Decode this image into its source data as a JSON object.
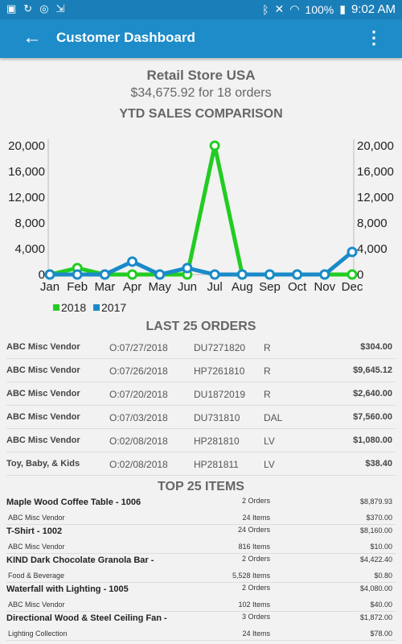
{
  "status": {
    "battery": "100%",
    "time": "9:02 AM"
  },
  "appbar": {
    "title": "Customer Dashboard"
  },
  "header": {
    "store": "Retail Store USA",
    "total": "$34,675.92 for 18 orders",
    "section": "YTD SALES COMPARISON"
  },
  "colors": {
    "series2018": "#22cc22",
    "series2017": "#1a8ac9",
    "appbar": "#1e8cc8"
  },
  "chart_data": {
    "type": "line",
    "categories": [
      "Jan",
      "Feb",
      "Mar",
      "Apr",
      "May",
      "Jun",
      "Jul",
      "Aug",
      "Sep",
      "Oct",
      "Nov",
      "Dec"
    ],
    "series": [
      {
        "name": "2018",
        "values": [
          0,
          1000,
          0,
          0,
          0,
          0,
          20000,
          0,
          0,
          0,
          0,
          0
        ]
      },
      {
        "name": "2017",
        "values": [
          0,
          0,
          0,
          2000,
          0,
          1000,
          0,
          0,
          0,
          0,
          0,
          3500
        ]
      }
    ],
    "yticks": [
      "20,000",
      "16,000",
      "12,000",
      "8,000",
      "4,000",
      "0"
    ],
    "ylim": [
      0,
      20000
    ],
    "legend": "bottom-left"
  },
  "orders": {
    "title": "LAST 25 ORDERS",
    "rows": [
      {
        "vendor": "ABC Misc Vendor",
        "date": "O:07/27/2018",
        "num": "DU7271820",
        "type": "R",
        "amount": "$304.00"
      },
      {
        "vendor": "ABC Misc Vendor",
        "date": "O:07/26/2018",
        "num": "HP7261810",
        "type": "R",
        "amount": "$9,645.12"
      },
      {
        "vendor": "ABC Misc Vendor",
        "date": "O:07/20/2018",
        "num": "DU1872019",
        "type": "R",
        "amount": "$2,640.00"
      },
      {
        "vendor": "ABC Misc Vendor",
        "date": "O:07/03/2018",
        "num": "DU731810",
        "type": "DAL",
        "amount": "$7,560.00"
      },
      {
        "vendor": "ABC Misc Vendor",
        "date": "O:02/08/2018",
        "num": "HP281810",
        "type": "LV",
        "amount": "$1,080.00"
      },
      {
        "vendor": "Toy, Baby, & Kids",
        "date": "O:02/08/2018",
        "num": "HP281811",
        "type": "LV",
        "amount": "$38.40"
      }
    ]
  },
  "items": {
    "title": "TOP 25 ITEMS",
    "rows": [
      {
        "name": "Maple Wood Coffee Table - 1006",
        "vendor": "ABC Misc Vendor",
        "orders": "2 Orders",
        "qty": "24 Items",
        "total": "$8,879.93",
        "unit": "$370.00"
      },
      {
        "name": "T-Shirt - 1002",
        "vendor": "ABC Misc Vendor",
        "orders": "24 Orders",
        "qty": "816 Items",
        "total": "$8,160.00",
        "unit": "$10.00"
      },
      {
        "name": "KIND Dark Chocolate Granola Bar -",
        "vendor": "Food & Beverage",
        "orders": "2 Orders",
        "qty": "5,528 Items",
        "total": "$4,422.40",
        "unit": "$0.80"
      },
      {
        "name": "Waterfall with Lighting - 1005",
        "vendor": "ABC Misc Vendor",
        "orders": "2 Orders",
        "qty": "102 Items",
        "total": "$4,080.00",
        "unit": "$40.00"
      },
      {
        "name": "Directional Wood & Steel Ceiling Fan -",
        "vendor": "Lighting Collection",
        "orders": "3 Orders",
        "qty": "24 Items",
        "total": "$1,872.00",
        "unit": "$78.00"
      }
    ]
  }
}
